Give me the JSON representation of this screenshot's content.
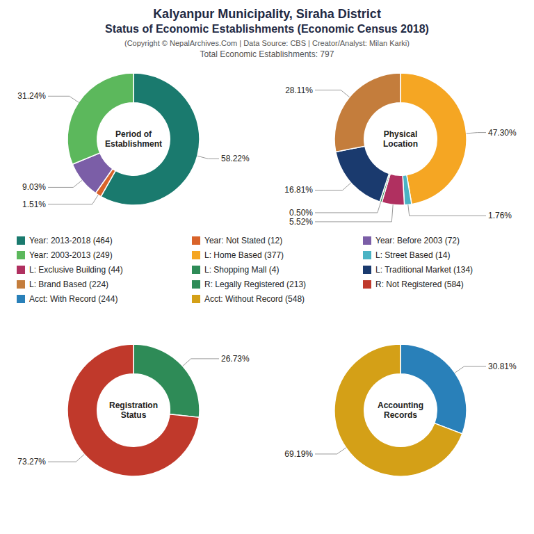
{
  "title": "Kalyanpur Municipality, Siraha District\nStatus of Economic Establishments (Economic Census 2018)",
  "subtitle": "(Copyright © NepalArchives.Com | Data Source: CBS | Creator/Analyst: Milan Karki)\nTotal Economic Establishments: 797",
  "chart_data": [
    {
      "type": "pie",
      "title": "Period of\nEstablishment",
      "categories": [
        "Year: 2013-2018 (464)",
        "Year: Not Stated (12)",
        "Year: Before 2003 (72)",
        "Year: 2003-2013 (249)"
      ],
      "values": [
        58.22,
        1.51,
        9.03,
        31.24
      ],
      "value_labels": [
        "58.22%",
        "1.51%",
        "9.03%",
        "31.24%"
      ],
      "colors": [
        "#1a7a6e",
        "#d9632a",
        "#7b5ea7",
        "#5cb85c"
      ],
      "data_labels": true
    },
    {
      "type": "pie",
      "title": "Physical\nLocation",
      "categories": [
        "L: Home Based (377)",
        "L: Street Based (14)",
        "L: Exclusive Building (44)",
        "L: Shopping Mall (4)",
        "L: Traditional Market (134)",
        "L: Brand Based (224)"
      ],
      "values": [
        47.3,
        1.76,
        5.52,
        0.5,
        16.81,
        28.11
      ],
      "value_labels": [
        "47.30%",
        "1.76%",
        "5.52%",
        "0.50%",
        "16.81%",
        "28.11%"
      ],
      "colors": [
        "#f5a623",
        "#4ab3c4",
        "#b03060",
        "#2e8b57",
        "#1a3a6e",
        "#c47d3c"
      ],
      "data_labels": true
    },
    {
      "type": "pie",
      "title": "Registration\nStatus",
      "categories": [
        "R: Legally Registered (213)",
        "R: Not Registered (584)"
      ],
      "values": [
        26.73,
        73.27
      ],
      "value_labels": [
        "26.73%",
        "73.27%"
      ],
      "colors": [
        "#2e8b57",
        "#c0392b"
      ],
      "data_labels": true
    },
    {
      "type": "pie",
      "title": "Accounting\nRecords",
      "categories": [
        "Acct: With Record (244)",
        "Acct: Without Record (548)"
      ],
      "values": [
        30.81,
        69.19
      ],
      "value_labels": [
        "30.81%",
        "69.19%"
      ],
      "colors": [
        "#2980b9",
        "#d4a017"
      ],
      "data_labels": true
    }
  ]
}
